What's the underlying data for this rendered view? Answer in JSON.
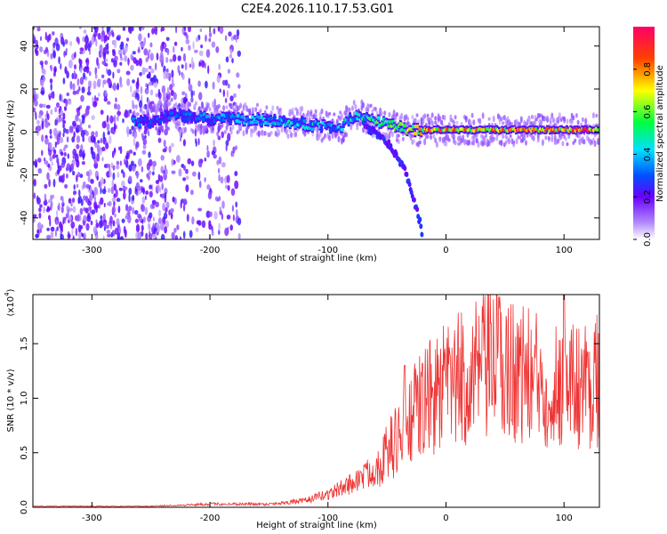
{
  "title": "C2E4.2026.110.17.53.G01",
  "chart_data": [
    {
      "type": "heatmap",
      "xlabel": "Height of straight line (km)",
      "ylabel": "Frequency (Hz)",
      "xlim": [
        -350,
        130
      ],
      "ylim": [
        -50,
        49
      ],
      "xticks": [
        -300,
        -200,
        -100,
        0,
        100
      ],
      "yticks": [
        -40,
        -20,
        0,
        20,
        40
      ],
      "colorbar": {
        "label": "Normalized spectral amplitude",
        "range": [
          0.0,
          1.0
        ],
        "ticks": [
          "0.0",
          "0.2",
          "0.4",
          "0.6",
          "0.8"
        ],
        "tick_values": [
          0.0,
          0.2,
          0.4,
          0.6,
          0.8
        ]
      },
      "ridge": {
        "x": [
          -265,
          -250,
          -230,
          -200,
          -170,
          -140,
          -110,
          -90,
          -75,
          -60,
          -45,
          -30,
          -20,
          0,
          50,
          100,
          130
        ],
        "freq": [
          5,
          5,
          8,
          6,
          6,
          5,
          3,
          2,
          8,
          5,
          3,
          1,
          1,
          1,
          1,
          1,
          1
        ],
        "amplitude": [
          0.35,
          0.3,
          0.3,
          0.35,
          0.4,
          0.45,
          0.45,
          0.4,
          0.5,
          0.55,
          0.6,
          0.7,
          0.8,
          0.85,
          0.85,
          0.9,
          0.95
        ]
      },
      "branch": {
        "x": [
          -70,
          -55,
          -45,
          -35,
          -28,
          -22,
          -20
        ],
        "freq": [
          3,
          -2,
          -8,
          -18,
          -30,
          -42,
          -48
        ]
      }
    },
    {
      "type": "line",
      "xlabel": "Height of straight line (km)",
      "ylabel": "SNR (10 * v/v)",
      "yscale_label": "(x10",
      "yscale_exp": "4",
      "y_multiplier": 10000,
      "xlim": [
        -350,
        130
      ],
      "ylim": [
        0,
        1.95
      ],
      "xticks": [
        -300,
        -200,
        -100,
        0,
        100
      ],
      "yticks": [
        "0.0",
        "0.5",
        "1.0",
        "1.5"
      ],
      "ytick_values": [
        0.0,
        0.5,
        1.0,
        1.5
      ],
      "color": "#ee3333",
      "trend_x": [
        -350,
        -250,
        -200,
        -150,
        -120,
        -100,
        -80,
        -60,
        -40,
        -20,
        0,
        20,
        40,
        60,
        80,
        100,
        120,
        130
      ],
      "trend_y": [
        0.01,
        0.01,
        0.03,
        0.03,
        0.06,
        0.12,
        0.22,
        0.35,
        0.65,
        0.95,
        1.1,
        1.2,
        1.3,
        1.25,
        1.15,
        1.1,
        1.15,
        1.2
      ],
      "peaks": [
        {
          "x": 43,
          "y": 1.95
        },
        {
          "x": 100,
          "y": 1.95
        },
        {
          "x": -35,
          "y": 1.3
        },
        {
          "x": -20,
          "y": 1.32
        }
      ]
    }
  ]
}
